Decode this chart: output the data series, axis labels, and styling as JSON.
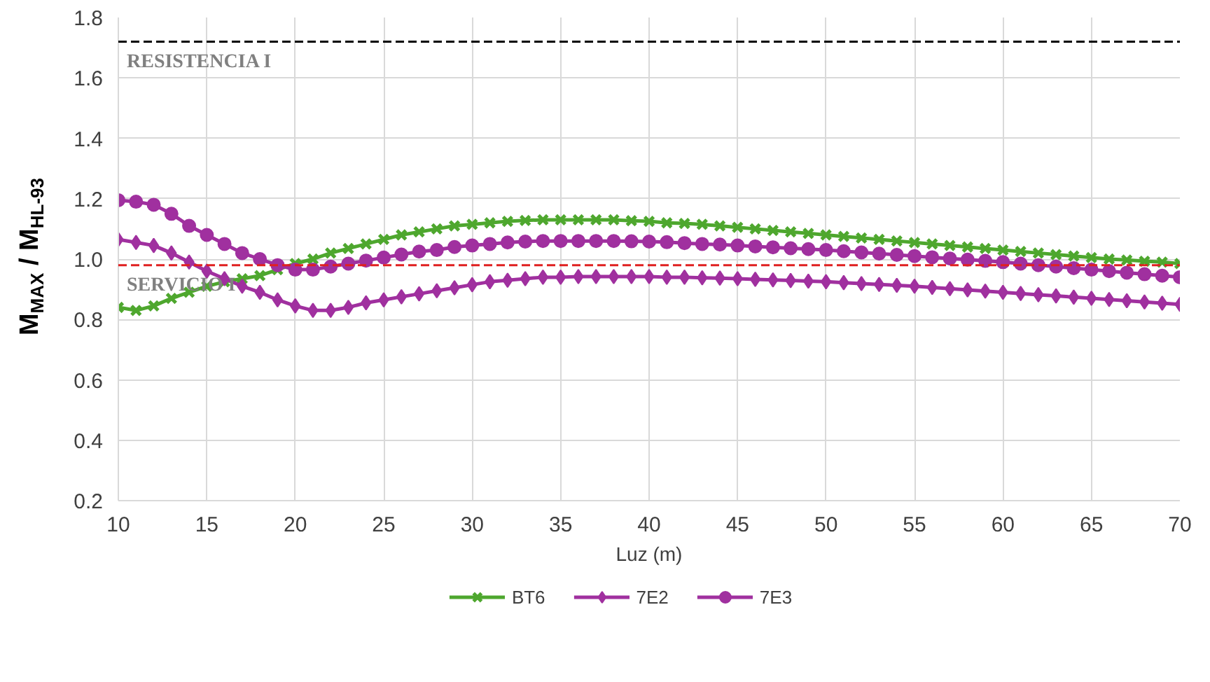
{
  "chart_data": {
    "type": "line",
    "xlabel": "Luz (m)",
    "ylabel": "M$_{MAX}$ / M$_{HL-93}$",
    "x": [
      10,
      11,
      12,
      13,
      14,
      15,
      16,
      17,
      18,
      19,
      20,
      21,
      22,
      23,
      24,
      25,
      26,
      27,
      28,
      29,
      30,
      31,
      32,
      33,
      34,
      35,
      36,
      37,
      38,
      39,
      40,
      41,
      42,
      43,
      44,
      45,
      46,
      47,
      48,
      49,
      50,
      51,
      52,
      53,
      54,
      55,
      56,
      57,
      58,
      59,
      60,
      61,
      62,
      63,
      64,
      65,
      66,
      67,
      68,
      69,
      70
    ],
    "series": [
      {
        "name": "BT6",
        "color": "#4ea72e",
        "marker": "cross",
        "values": [
          0.84,
          0.83,
          0.845,
          0.87,
          0.89,
          0.91,
          0.925,
          0.935,
          0.945,
          0.965,
          0.985,
          1.0,
          1.02,
          1.035,
          1.05,
          1.065,
          1.08,
          1.09,
          1.1,
          1.11,
          1.115,
          1.12,
          1.125,
          1.128,
          1.13,
          1.13,
          1.13,
          1.13,
          1.13,
          1.127,
          1.125,
          1.12,
          1.118,
          1.115,
          1.11,
          1.105,
          1.1,
          1.095,
          1.09,
          1.085,
          1.08,
          1.075,
          1.07,
          1.065,
          1.06,
          1.055,
          1.05,
          1.045,
          1.04,
          1.035,
          1.03,
          1.025,
          1.02,
          1.015,
          1.01,
          1.005,
          1.0,
          0.997,
          0.993,
          0.99,
          0.985
        ]
      },
      {
        "name": "7E2",
        "color": "#a0309f",
        "marker": "diamond",
        "values": [
          1.065,
          1.055,
          1.045,
          1.02,
          0.99,
          0.96,
          0.935,
          0.91,
          0.89,
          0.865,
          0.845,
          0.83,
          0.83,
          0.84,
          0.855,
          0.865,
          0.875,
          0.885,
          0.895,
          0.905,
          0.915,
          0.925,
          0.93,
          0.935,
          0.94,
          0.94,
          0.942,
          0.942,
          0.942,
          0.942,
          0.942,
          0.94,
          0.94,
          0.938,
          0.937,
          0.935,
          0.933,
          0.931,
          0.929,
          0.927,
          0.925,
          0.922,
          0.919,
          0.916,
          0.913,
          0.91,
          0.906,
          0.902,
          0.898,
          0.894,
          0.89,
          0.886,
          0.882,
          0.878,
          0.874,
          0.87,
          0.866,
          0.862,
          0.858,
          0.854,
          0.85
        ]
      },
      {
        "name": "7E3",
        "color": "#a0309f",
        "marker": "circle",
        "values": [
          1.195,
          1.19,
          1.18,
          1.15,
          1.11,
          1.08,
          1.05,
          1.02,
          1.0,
          0.98,
          0.965,
          0.965,
          0.975,
          0.985,
          0.995,
          1.005,
          1.015,
          1.025,
          1.03,
          1.04,
          1.045,
          1.05,
          1.055,
          1.058,
          1.06,
          1.06,
          1.06,
          1.06,
          1.06,
          1.059,
          1.058,
          1.056,
          1.053,
          1.05,
          1.048,
          1.045,
          1.042,
          1.039,
          1.036,
          1.033,
          1.03,
          1.026,
          1.022,
          1.018,
          1.014,
          1.01,
          1.006,
          1.002,
          0.998,
          0.994,
          0.99,
          0.985,
          0.98,
          0.975,
          0.97,
          0.965,
          0.96,
          0.955,
          0.95,
          0.945,
          0.94
        ]
      }
    ],
    "xlim": [
      10,
      70
    ],
    "xticks": [
      10,
      15,
      20,
      25,
      30,
      35,
      40,
      45,
      50,
      55,
      60,
      65,
      70
    ],
    "ylim": [
      0.2,
      1.8
    ],
    "yticks": [
      {
        "value": 0.2,
        "label": "0.2"
      },
      {
        "value": 0.4,
        "label": "0.4"
      },
      {
        "value": 0.6,
        "label": "0.6"
      },
      {
        "value": 0.8,
        "label": "0.8"
      },
      {
        "value": 1.0,
        "label": "1.0"
      },
      {
        "value": 1.2,
        "label": "1.2"
      },
      {
        "value": 1.4,
        "label": "1.4"
      },
      {
        "value": 1.6,
        "label": "1.6"
      },
      {
        "value": 1.8,
        "label": "1.8"
      }
    ],
    "ref_lines": [
      {
        "axis": "y",
        "value": 1.72,
        "label": "RESISTENCIA I",
        "color": "#000000",
        "line_style": "dashed"
      },
      {
        "axis": "y",
        "value": 0.98,
        "label": "SERVICIO I",
        "color": "#e02020",
        "line_style": "dashed"
      }
    ],
    "grid": true,
    "legend": "bottom",
    "line_style": "solid"
  }
}
